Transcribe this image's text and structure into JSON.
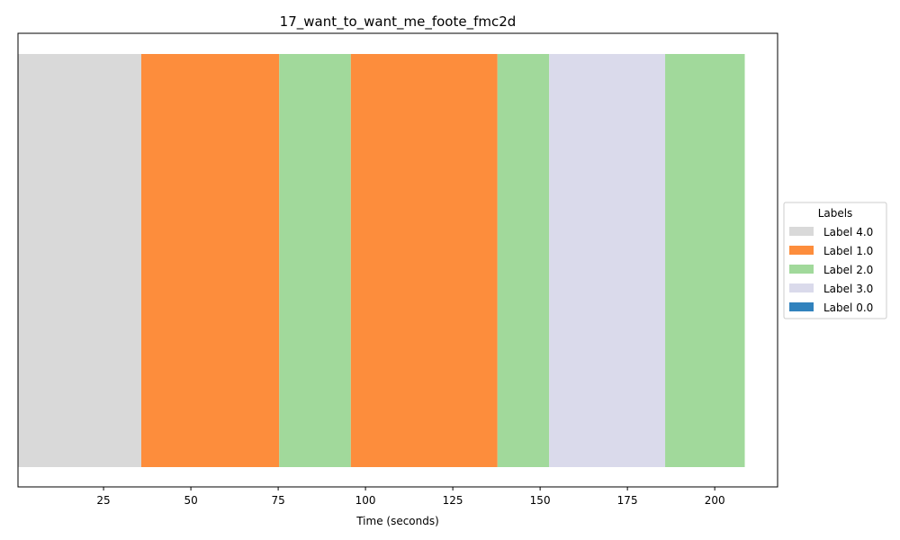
{
  "chart_data": {
    "type": "bar",
    "orientation": "horizontal-segments",
    "title": "17_want_to_want_me_foote_fmc2d",
    "xlabel": "Time (seconds)",
    "ylabel": "",
    "xlim": [
      0.5,
      218
    ],
    "xticks": [
      25,
      50,
      75,
      100,
      125,
      150,
      175,
      200
    ],
    "segments": [
      {
        "start": 0.5,
        "end": 35.8,
        "label": "Label 4.0"
      },
      {
        "start": 35.8,
        "end": 75.3,
        "label": "Label 1.0"
      },
      {
        "start": 75.3,
        "end": 95.8,
        "label": "Label 2.0"
      },
      {
        "start": 95.8,
        "end": 137.8,
        "label": "Label 1.0"
      },
      {
        "start": 137.8,
        "end": 152.6,
        "label": "Label 2.0"
      },
      {
        "start": 152.6,
        "end": 185.8,
        "label": "Label 3.0"
      },
      {
        "start": 185.8,
        "end": 208.6,
        "label": "Label 2.0"
      }
    ],
    "legend": {
      "title": "Labels",
      "placement": "center-right-outside",
      "entries": [
        {
          "label": "Label 4.0",
          "color": "#d9d9d9"
        },
        {
          "label": "Label 1.0",
          "color": "#fd8d3c"
        },
        {
          "label": "Label 2.0",
          "color": "#a1d99b"
        },
        {
          "label": "Label 3.0",
          "color": "#dadaeb"
        },
        {
          "label": "Label 0.0",
          "color": "#3182bd"
        }
      ]
    },
    "grid": false
  }
}
